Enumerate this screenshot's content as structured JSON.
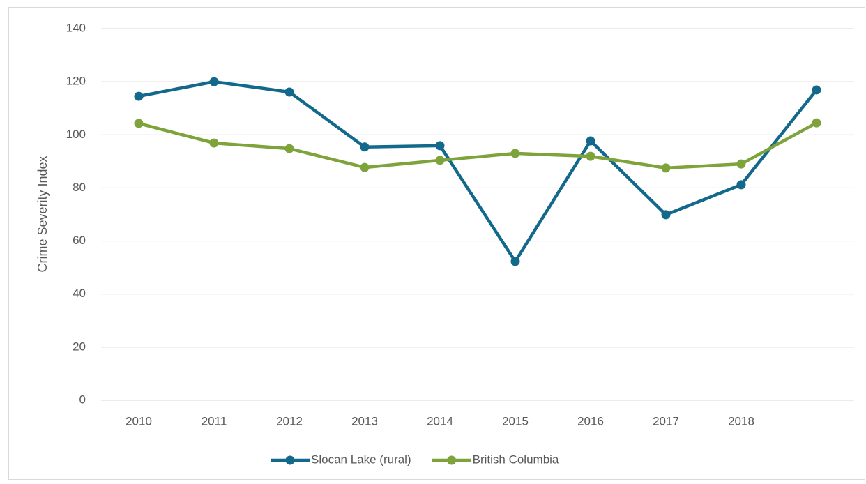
{
  "chart_data": {
    "type": "line",
    "y_label": "Crime Severity Index",
    "categories": [
      "2010",
      "2011",
      "2012",
      "2013",
      "2014",
      "2015",
      "2016",
      "2017",
      "2018",
      null
    ],
    "series": [
      {
        "name": "Slocan Lake (rural)",
        "color": "#13698b",
        "values": [
          114.5,
          120.0,
          116.1,
          95.4,
          95.9,
          52.3,
          97.7,
          69.9,
          81.2,
          116.9
        ]
      },
      {
        "name": "British Columbia",
        "color": "#7ea33b",
        "values": [
          104.3,
          96.9,
          94.8,
          87.7,
          90.4,
          93.0,
          91.9,
          87.5,
          89.0,
          104.5
        ]
      }
    ],
    "ylim": [
      0,
      140
    ],
    "yticks": [
      0,
      20,
      40,
      60,
      80,
      100,
      120,
      140
    ],
    "grid": true,
    "legend": "bottom"
  }
}
